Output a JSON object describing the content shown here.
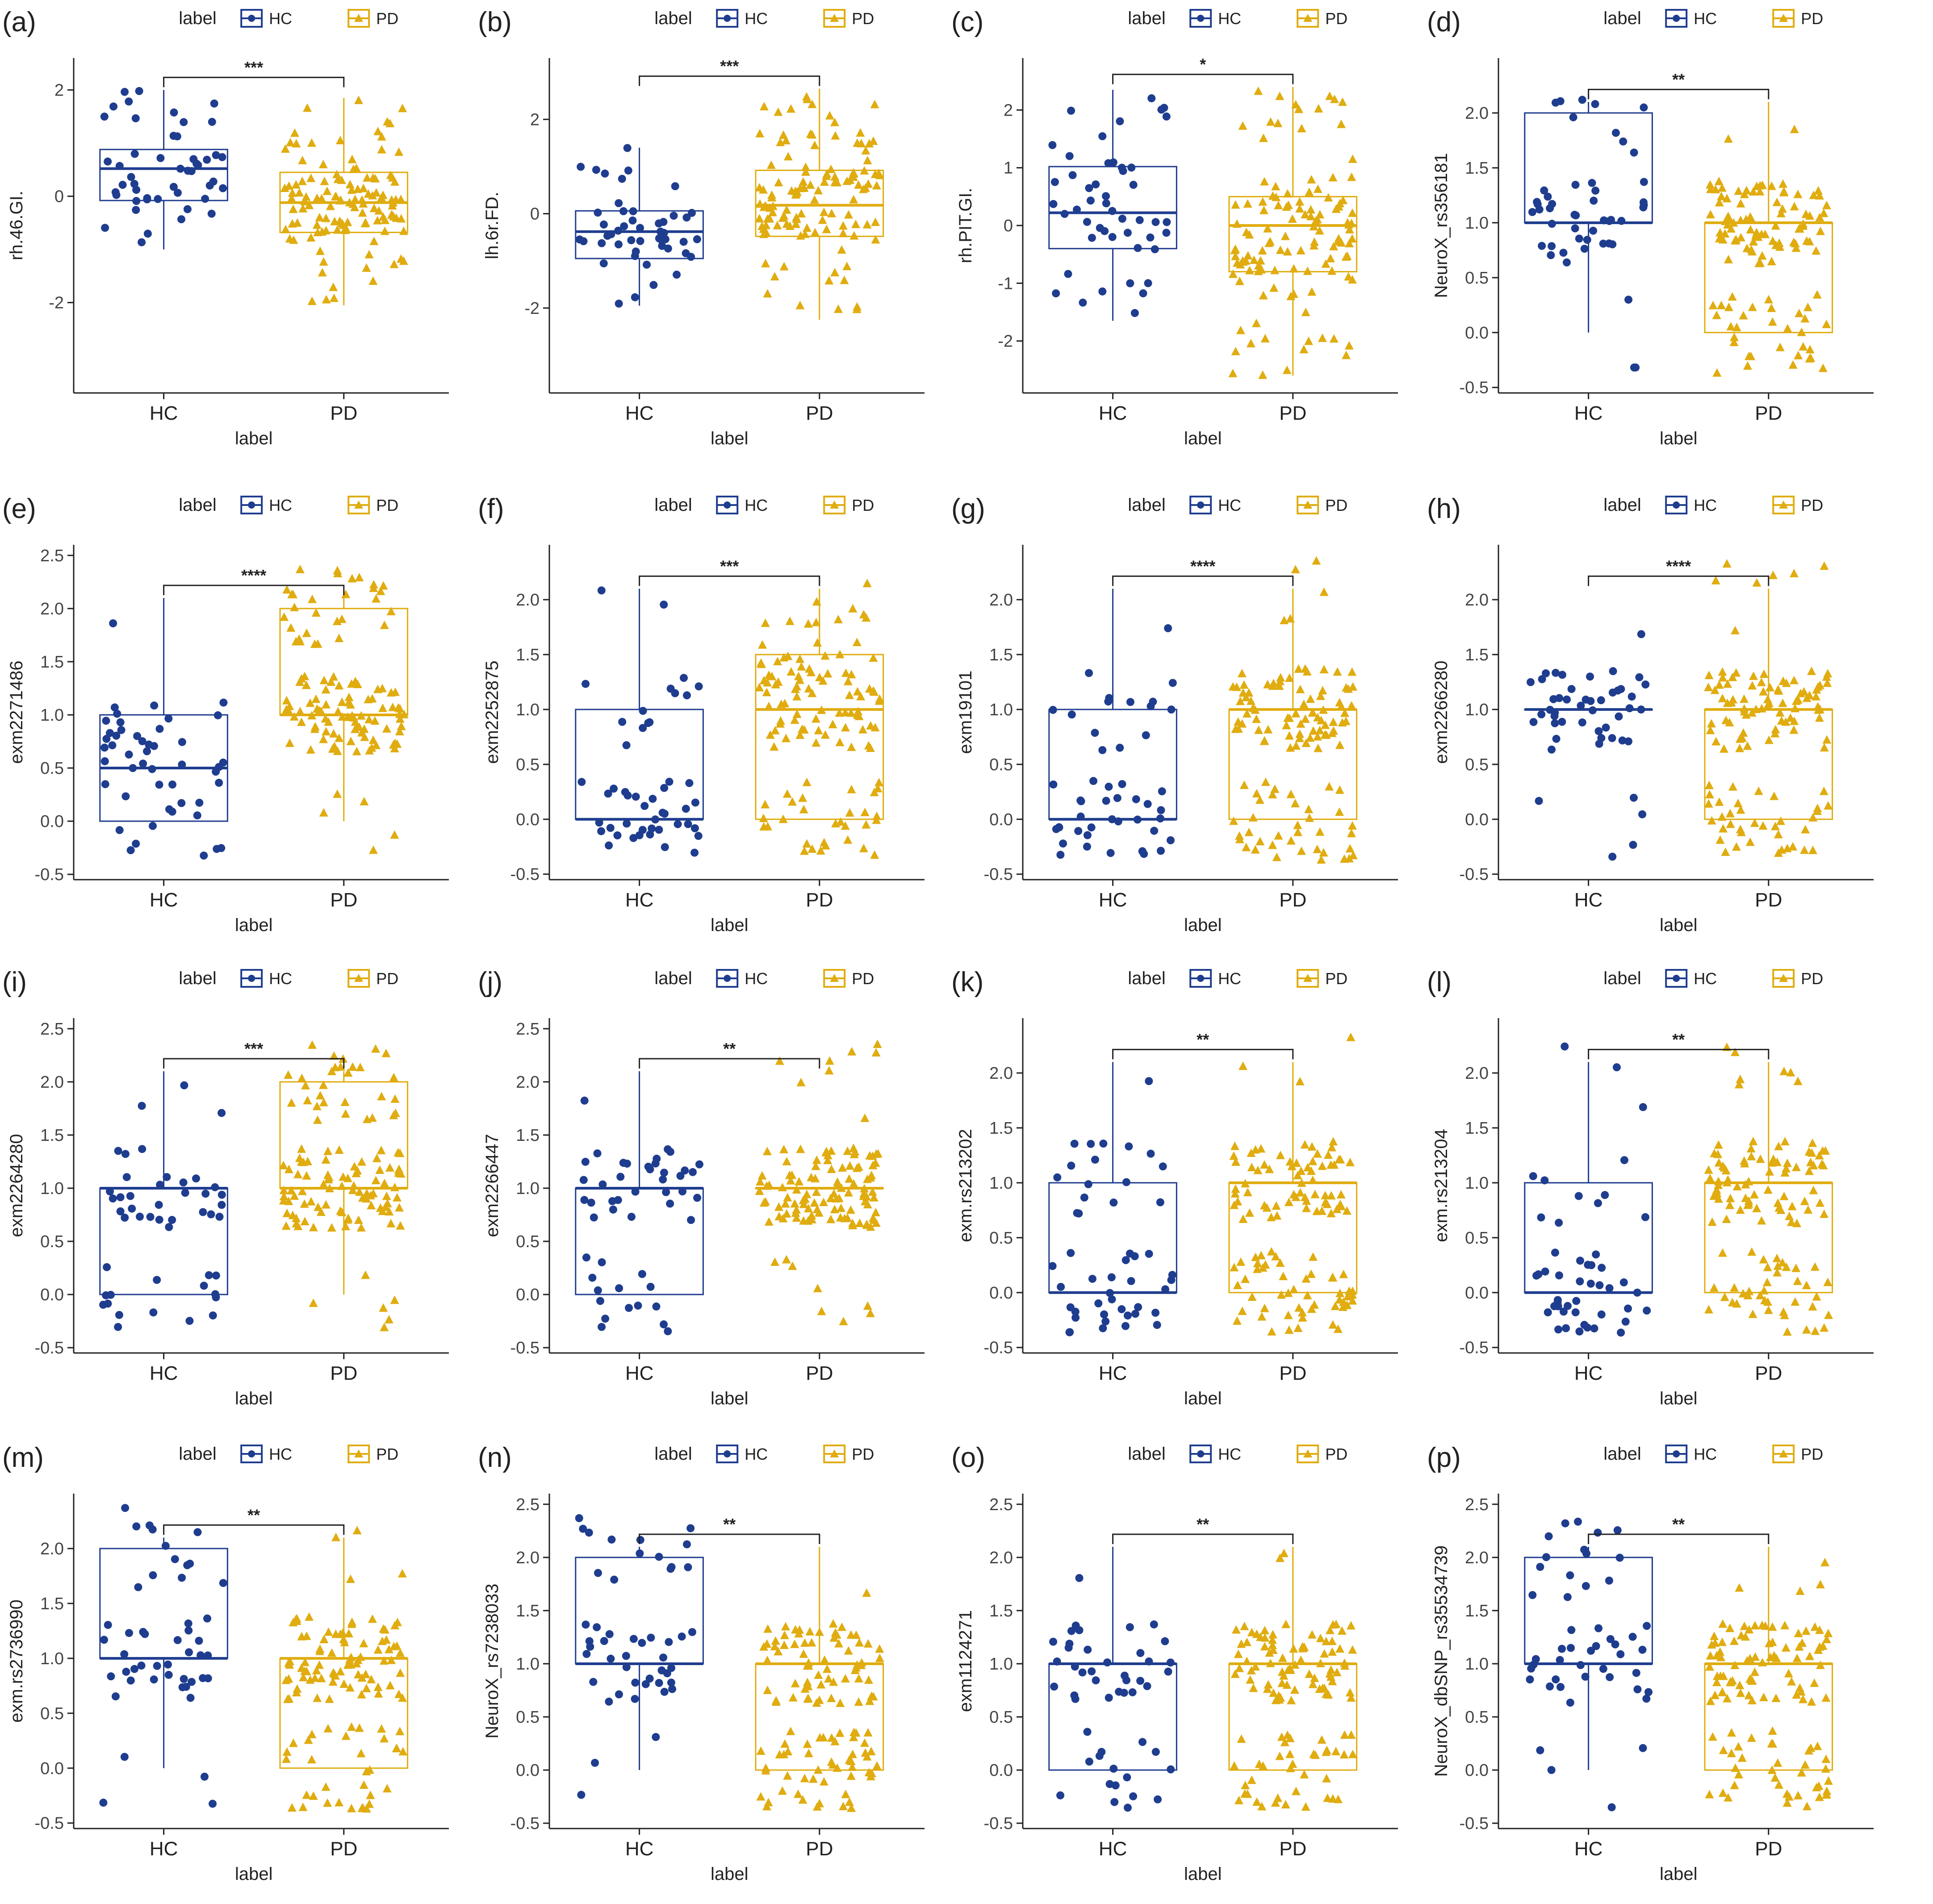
{
  "figure": {
    "colors": {
      "HC": "#1f3d8f",
      "PD": "#e0ac0f",
      "axis": "#222222",
      "text": "#222222"
    },
    "legend_title": "label",
    "group_names": [
      "HC",
      "PD"
    ],
    "xlabel": "label"
  },
  "chart_data": [
    {
      "id": "a",
      "panel_label": "(a)",
      "type": "box",
      "title": "",
      "xlabel": "label",
      "ylabel": "rh.46.GI.",
      "categories": [
        "HC",
        "PD"
      ],
      "ylim": [
        -3.7,
        2.6
      ],
      "yticks": [
        -2,
        0,
        2
      ],
      "significance": "***",
      "groups": [
        {
          "name": "HC",
          "q1": -0.08,
          "median": 0.52,
          "q3": 0.88,
          "whisker_low": -1.0,
          "whisker_high": 2.0
        },
        {
          "name": "PD",
          "q1": -0.68,
          "median": -0.12,
          "q3": 0.45,
          "whisker_low": -2.05,
          "whisker_high": 1.85
        }
      ]
    },
    {
      "id": "b",
      "panel_label": "(b)",
      "type": "box",
      "title": "",
      "xlabel": "label",
      "ylabel": "lh.6r.FD.",
      "categories": [
        "HC",
        "PD"
      ],
      "ylim": [
        -3.8,
        3.3
      ],
      "yticks": [
        -2,
        0,
        2
      ],
      "significance": "***",
      "groups": [
        {
          "name": "HC",
          "q1": -0.95,
          "median": -0.38,
          "q3": 0.06,
          "whisker_low": -1.95,
          "whisker_high": 1.4
        },
        {
          "name": "PD",
          "q1": -0.48,
          "median": 0.18,
          "q3": 0.92,
          "whisker_low": -2.25,
          "whisker_high": 2.65
        }
      ]
    },
    {
      "id": "c",
      "panel_label": "(c)",
      "type": "box",
      "title": "",
      "xlabel": "label",
      "ylabel": "rh.PIT.GI.",
      "categories": [
        "HC",
        "PD"
      ],
      "ylim": [
        -2.9,
        2.9
      ],
      "yticks": [
        -2,
        -1,
        0,
        1,
        2
      ],
      "significance": "*",
      "groups": [
        {
          "name": "HC",
          "q1": -0.4,
          "median": 0.22,
          "q3": 1.02,
          "whisker_low": -1.65,
          "whisker_high": 2.35
        },
        {
          "name": "PD",
          "q1": -0.8,
          "median": 0.0,
          "q3": 0.5,
          "whisker_low": -2.6,
          "whisker_high": 2.4
        }
      ]
    },
    {
      "id": "d",
      "panel_label": "(d)",
      "type": "box",
      "title": "",
      "xlabel": "label",
      "ylabel": "NeuroX_rs356181",
      "categories": [
        "HC",
        "PD"
      ],
      "ylim": [
        -0.55,
        2.5
      ],
      "yticks": [
        -0.5,
        0.0,
        0.5,
        1.0,
        1.5,
        2.0
      ],
      "significance": "**",
      "groups": [
        {
          "name": "HC",
          "q1": 1.0,
          "median": 1.0,
          "q3": 2.0,
          "whisker_low": 0.0,
          "whisker_high": 2.1
        },
        {
          "name": "PD",
          "q1": 0.0,
          "median": 1.0,
          "q3": 1.0,
          "whisker_low": 0.0,
          "whisker_high": 2.1
        }
      ]
    },
    {
      "id": "e",
      "panel_label": "(e)",
      "type": "box",
      "title": "",
      "xlabel": "label",
      "ylabel": "exm2271486",
      "categories": [
        "HC",
        "PD"
      ],
      "ylim": [
        -0.55,
        2.6
      ],
      "yticks": [
        -0.5,
        0.0,
        0.5,
        1.0,
        1.5,
        2.0,
        2.5
      ],
      "significance": "****",
      "groups": [
        {
          "name": "HC",
          "q1": 0.0,
          "median": 0.5,
          "q3": 1.0,
          "whisker_low": 0.0,
          "whisker_high": 2.1
        },
        {
          "name": "PD",
          "q1": 1.0,
          "median": 1.0,
          "q3": 2.0,
          "whisker_low": 0.0,
          "whisker_high": 2.1
        }
      ]
    },
    {
      "id": "f",
      "panel_label": "(f)",
      "type": "box",
      "title": "",
      "xlabel": "label",
      "ylabel": "exm2252875",
      "categories": [
        "HC",
        "PD"
      ],
      "ylim": [
        -0.55,
        2.5
      ],
      "yticks": [
        -0.5,
        0.0,
        0.5,
        1.0,
        1.5,
        2.0
      ],
      "significance": "***",
      "groups": [
        {
          "name": "HC",
          "q1": 0.0,
          "median": 0.0,
          "q3": 1.0,
          "whisker_low": 0.0,
          "whisker_high": 2.1
        },
        {
          "name": "PD",
          "q1": 0.0,
          "median": 1.0,
          "q3": 1.5,
          "whisker_low": 0.0,
          "whisker_high": 2.1
        }
      ]
    },
    {
      "id": "g",
      "panel_label": "(g)",
      "type": "box",
      "title": "",
      "xlabel": "label",
      "ylabel": "exm19101",
      "categories": [
        "HC",
        "PD"
      ],
      "ylim": [
        -0.55,
        2.5
      ],
      "yticks": [
        -0.5,
        0.0,
        0.5,
        1.0,
        1.5,
        2.0
      ],
      "significance": "****",
      "groups": [
        {
          "name": "HC",
          "q1": 0.0,
          "median": 0.0,
          "q3": 1.0,
          "whisker_low": 0.0,
          "whisker_high": 2.1
        },
        {
          "name": "PD",
          "q1": 0.0,
          "median": 1.0,
          "q3": 1.0,
          "whisker_low": 0.0,
          "whisker_high": 2.1
        }
      ]
    },
    {
      "id": "h",
      "panel_label": "(h)",
      "type": "box",
      "title": "",
      "xlabel": "label",
      "ylabel": "exm2266280",
      "categories": [
        "HC",
        "PD"
      ],
      "ylim": [
        -0.55,
        2.5
      ],
      "yticks": [
        -0.5,
        0.0,
        0.5,
        1.0,
        1.5,
        2.0
      ],
      "significance": "****",
      "groups": [
        {
          "name": "HC",
          "q1": 1.0,
          "median": 1.0,
          "q3": 1.0,
          "whisker_low": 1.0,
          "whisker_high": 1.0
        },
        {
          "name": "PD",
          "q1": 0.0,
          "median": 1.0,
          "q3": 1.0,
          "whisker_low": 0.0,
          "whisker_high": 2.1
        }
      ]
    },
    {
      "id": "i",
      "panel_label": "(i)",
      "type": "box",
      "title": "",
      "xlabel": "label",
      "ylabel": "exm2264280",
      "categories": [
        "HC",
        "PD"
      ],
      "ylim": [
        -0.55,
        2.6
      ],
      "yticks": [
        -0.5,
        0.0,
        0.5,
        1.0,
        1.5,
        2.0,
        2.5
      ],
      "significance": "***",
      "groups": [
        {
          "name": "HC",
          "q1": 0.0,
          "median": 1.0,
          "q3": 1.0,
          "whisker_low": 0.0,
          "whisker_high": 2.1
        },
        {
          "name": "PD",
          "q1": 1.0,
          "median": 1.0,
          "q3": 2.0,
          "whisker_low": 0.0,
          "whisker_high": 2.1
        }
      ]
    },
    {
      "id": "j",
      "panel_label": "(j)",
      "type": "box",
      "title": "",
      "xlabel": "label",
      "ylabel": "exm2266447",
      "categories": [
        "HC",
        "PD"
      ],
      "ylim": [
        -0.55,
        2.6
      ],
      "yticks": [
        -0.5,
        0.0,
        0.5,
        1.0,
        1.5,
        2.0,
        2.5
      ],
      "significance": "**",
      "groups": [
        {
          "name": "HC",
          "q1": 0.0,
          "median": 1.0,
          "q3": 1.0,
          "whisker_low": 0.0,
          "whisker_high": 2.1
        },
        {
          "name": "PD",
          "q1": 1.0,
          "median": 1.0,
          "q3": 1.0,
          "whisker_low": 1.0,
          "whisker_high": 1.0
        }
      ]
    },
    {
      "id": "k",
      "panel_label": "(k)",
      "type": "box",
      "title": "",
      "xlabel": "label",
      "ylabel": "exm.rs213202",
      "categories": [
        "HC",
        "PD"
      ],
      "ylim": [
        -0.55,
        2.5
      ],
      "yticks": [
        -0.5,
        0.0,
        0.5,
        1.0,
        1.5,
        2.0
      ],
      "significance": "**",
      "groups": [
        {
          "name": "HC",
          "q1": 0.0,
          "median": 0.0,
          "q3": 1.0,
          "whisker_low": 0.0,
          "whisker_high": 2.1
        },
        {
          "name": "PD",
          "q1": 0.0,
          "median": 1.0,
          "q3": 1.0,
          "whisker_low": 0.0,
          "whisker_high": 2.1
        }
      ]
    },
    {
      "id": "l",
      "panel_label": "(l)",
      "type": "box",
      "title": "",
      "xlabel": "label",
      "ylabel": "exm.rs213204",
      "categories": [
        "HC",
        "PD"
      ],
      "ylim": [
        -0.55,
        2.5
      ],
      "yticks": [
        -0.5,
        0.0,
        0.5,
        1.0,
        1.5,
        2.0
      ],
      "significance": "**",
      "groups": [
        {
          "name": "HC",
          "q1": 0.0,
          "median": 0.0,
          "q3": 1.0,
          "whisker_low": 0.0,
          "whisker_high": 2.1
        },
        {
          "name": "PD",
          "q1": 0.0,
          "median": 1.0,
          "q3": 1.0,
          "whisker_low": 0.0,
          "whisker_high": 2.1
        }
      ]
    },
    {
      "id": "m",
      "panel_label": "(m)",
      "type": "box",
      "title": "",
      "xlabel": "label",
      "ylabel": "exm.rs2736990",
      "categories": [
        "HC",
        "PD"
      ],
      "ylim": [
        -0.55,
        2.5
      ],
      "yticks": [
        -0.5,
        0.0,
        0.5,
        1.0,
        1.5,
        2.0
      ],
      "significance": "**",
      "groups": [
        {
          "name": "HC",
          "q1": 1.0,
          "median": 1.0,
          "q3": 2.0,
          "whisker_low": 0.0,
          "whisker_high": 2.1
        },
        {
          "name": "PD",
          "q1": 0.0,
          "median": 1.0,
          "q3": 1.0,
          "whisker_low": 0.0,
          "whisker_high": 2.1
        }
      ]
    },
    {
      "id": "n",
      "panel_label": "(n)",
      "type": "box",
      "title": "",
      "xlabel": "label",
      "ylabel": "NeuroX_rs7238033",
      "categories": [
        "HC",
        "PD"
      ],
      "ylim": [
        -0.55,
        2.6
      ],
      "yticks": [
        -0.5,
        0.0,
        0.5,
        1.0,
        1.5,
        2.0,
        2.5
      ],
      "significance": "**",
      "groups": [
        {
          "name": "HC",
          "q1": 1.0,
          "median": 1.0,
          "q3": 2.0,
          "whisker_low": 0.0,
          "whisker_high": 2.1
        },
        {
          "name": "PD",
          "q1": 0.0,
          "median": 1.0,
          "q3": 1.0,
          "whisker_low": 0.0,
          "whisker_high": 2.1
        }
      ]
    },
    {
      "id": "o",
      "panel_label": "(o)",
      "type": "box",
      "title": "",
      "xlabel": "label",
      "ylabel": "exm1124271",
      "categories": [
        "HC",
        "PD"
      ],
      "ylim": [
        -0.55,
        2.6
      ],
      "yticks": [
        -0.5,
        0.0,
        0.5,
        1.0,
        1.5,
        2.0,
        2.5
      ],
      "significance": "**",
      "groups": [
        {
          "name": "HC",
          "q1": 0.0,
          "median": 1.0,
          "q3": 1.0,
          "whisker_low": 0.0,
          "whisker_high": 2.1
        },
        {
          "name": "PD",
          "q1": 0.0,
          "median": 1.0,
          "q3": 1.0,
          "whisker_low": 0.0,
          "whisker_high": 2.1
        }
      ]
    },
    {
      "id": "p",
      "panel_label": "(p)",
      "type": "box",
      "title": "",
      "xlabel": "label",
      "ylabel": "NeuroX_dbSNP_rs35534739",
      "categories": [
        "HC",
        "PD"
      ],
      "ylim": [
        -0.55,
        2.6
      ],
      "yticks": [
        -0.5,
        0.0,
        0.5,
        1.0,
        1.5,
        2.0,
        2.5
      ],
      "significance": "**",
      "groups": [
        {
          "name": "HC",
          "q1": 1.0,
          "median": 1.0,
          "q3": 2.0,
          "whisker_low": 0.0,
          "whisker_high": 2.1
        },
        {
          "name": "PD",
          "q1": 0.0,
          "median": 1.0,
          "q3": 1.0,
          "whisker_low": 0.0,
          "whisker_high": 2.1
        }
      ]
    }
  ]
}
